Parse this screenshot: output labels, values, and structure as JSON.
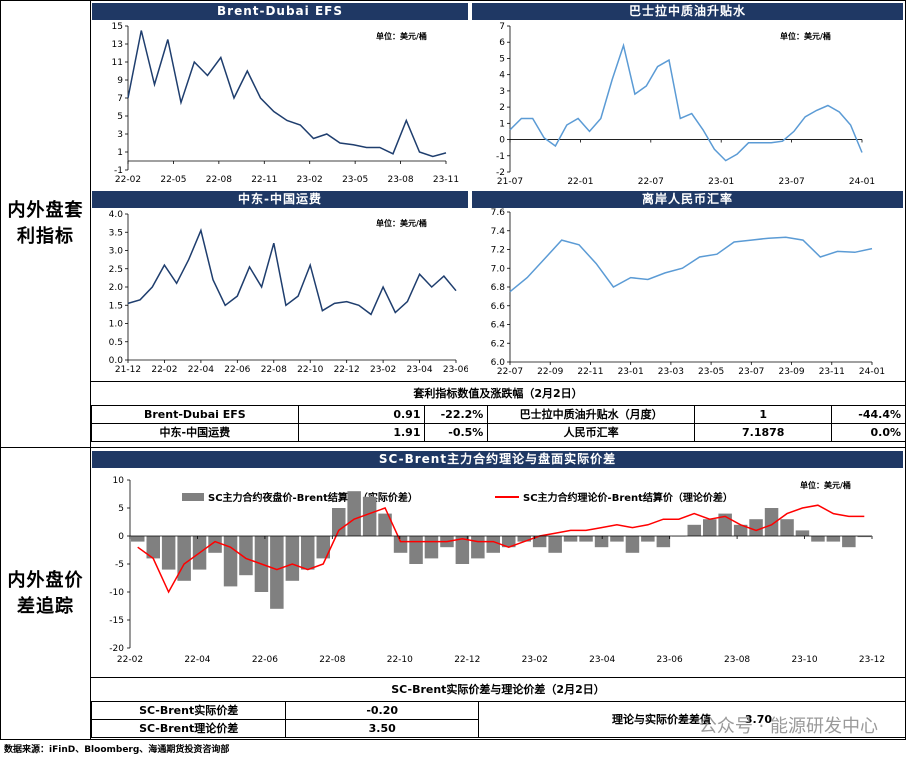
{
  "sections": {
    "top_label": "内外盘套\n利指标",
    "bottom_label": "内外盘价\n差追踪"
  },
  "charts": {
    "efs": {
      "title": "Brent-Dubai EFS",
      "unit": "单位：美元/桶",
      "color": "#1f3e6e"
    },
    "basrah": {
      "title": "巴士拉中质油升贴水",
      "unit": "单位：美元/桶",
      "color": "#5b9bd5"
    },
    "freight": {
      "title": "中东-中国运费",
      "unit": "单位：美元/桶",
      "color": "#1f3e6e"
    },
    "cny": {
      "title": "离岸人民币汇率",
      "color": "#5b9bd5"
    },
    "sc": {
      "title": "SC-Brent主力合约理论与盘面实际价差",
      "unit": "单位：美元/桶",
      "legend_bar": "SC主力合约夜盘价-Brent结算价（实际价差）",
      "legend_line": "SC主力合约理论价-Brent结算价（理论价差）",
      "bar_color": "#808080",
      "line_color": "#ff0000"
    }
  },
  "table1": {
    "title": "套利指标数值及涨跌幅（2月2日）",
    "rows": [
      [
        "Brent-Dubai EFS",
        "0.91",
        "-22.2%",
        "巴士拉中质油升贴水（月度）",
        "1",
        "-44.4%"
      ],
      [
        "中东-中国运费",
        "1.91",
        "-0.5%",
        "人民币汇率",
        "7.1878",
        "0.0%"
      ]
    ]
  },
  "table2": {
    "title": "SC-Brent实际价差与理论价差（2月2日）",
    "actual_label": "SC-Brent实际价差",
    "actual_value": "-0.20",
    "theory_label": "SC-Brent理论价差",
    "theory_value": "3.50",
    "diff_label": "理论与实际价差差值",
    "diff_value": "3.70"
  },
  "watermark": "公众号 · 能源研发中心",
  "source": "数据来源：iFinD、Bloomberg、海通期货投资咨询部",
  "chart_data": [
    {
      "type": "line",
      "title": "Brent-Dubai EFS",
      "unit": "单位：美元/桶",
      "xticks": [
        "22-02",
        "22-05",
        "22-08",
        "22-11",
        "23-02",
        "23-05",
        "23-08",
        "23-11"
      ],
      "yticks": [
        -1,
        1,
        3,
        5,
        7,
        9,
        11,
        13,
        15
      ],
      "ylim": [
        -1,
        15
      ],
      "x": [
        0,
        1,
        2,
        3,
        4,
        5,
        6,
        7,
        8,
        9,
        10,
        11,
        12,
        13,
        14,
        15,
        16,
        17,
        18,
        19,
        20,
        21,
        22,
        23,
        24
      ],
      "y": [
        7.0,
        14.5,
        8.5,
        13.5,
        6.5,
        11.0,
        9.5,
        11.5,
        7.0,
        10.0,
        7.0,
        5.5,
        4.5,
        4.0,
        2.5,
        3.0,
        2.0,
        1.8,
        1.5,
        1.5,
        0.8,
        4.5,
        1.0,
        0.5,
        0.9
      ]
    },
    {
      "type": "line",
      "title": "巴士拉中质油升贴水",
      "unit": "单位：美元/桶",
      "xticks": [
        "21-07",
        "22-01",
        "22-07",
        "23-01",
        "23-07",
        "24-01"
      ],
      "yticks": [
        -2.0,
        -1.0,
        0.0,
        1.0,
        2.0,
        3.0,
        4.0,
        5.0,
        6.0,
        7.0
      ],
      "ylim": [
        -2,
        7
      ],
      "x": [
        0,
        1,
        2,
        3,
        4,
        5,
        6,
        7,
        8,
        9,
        10,
        11,
        12,
        13,
        14,
        15,
        16,
        17,
        18,
        19,
        20,
        21,
        22,
        23,
        24,
        25,
        26,
        27,
        28,
        29,
        30,
        31
      ],
      "y": [
        0.6,
        1.3,
        1.3,
        0.1,
        -0.4,
        0.9,
        1.3,
        0.5,
        1.3,
        3.7,
        5.8,
        2.8,
        3.3,
        4.5,
        4.9,
        1.3,
        1.6,
        0.6,
        -0.6,
        -1.3,
        -0.9,
        -0.2,
        -0.2,
        -0.2,
        -0.1,
        0.5,
        1.4,
        1.8,
        2.1,
        1.7,
        0.9,
        -0.8
      ]
    },
    {
      "type": "line",
      "title": "中东-中国运费",
      "unit": "单位：美元/桶",
      "xticks": [
        "21-12",
        "22-02",
        "22-04",
        "22-06",
        "22-08",
        "22-10",
        "22-12",
        "23-02",
        "23-04",
        "23-06"
      ],
      "yticks": [
        0.0,
        0.5,
        1.0,
        1.5,
        2.0,
        2.5,
        3.0,
        3.5,
        4.0
      ],
      "ylim": [
        0,
        4
      ],
      "x": [
        0,
        1,
        2,
        3,
        4,
        5,
        6,
        7,
        8,
        9,
        10,
        11,
        12,
        13,
        14,
        15,
        16,
        17,
        18,
        19,
        20,
        21,
        22,
        23,
        24,
        25,
        26,
        27
      ],
      "y": [
        1.55,
        1.65,
        2.0,
        2.6,
        2.1,
        2.75,
        3.55,
        2.2,
        1.5,
        1.75,
        2.55,
        2.0,
        3.2,
        1.5,
        1.75,
        2.6,
        1.35,
        1.55,
        1.6,
        1.5,
        1.25,
        2.0,
        1.3,
        1.6,
        2.35,
        2.0,
        2.3,
        1.9
      ]
    },
    {
      "type": "line",
      "title": "离岸人民币汇率",
      "xticks": [
        "22-07",
        "22-09",
        "22-11",
        "23-01",
        "23-03",
        "23-05",
        "23-07",
        "23-09",
        "23-11",
        "24-01"
      ],
      "yticks": [
        6.0,
        6.2,
        6.4,
        6.6,
        6.8,
        7.0,
        7.2,
        7.4,
        7.6
      ],
      "ylim": [
        6,
        7.6
      ],
      "x": [
        0,
        1,
        2,
        3,
        4,
        5,
        6,
        7,
        8,
        9,
        10,
        11,
        12,
        13,
        14,
        15,
        16,
        17,
        18,
        19,
        20,
        21
      ],
      "y": [
        6.75,
        6.9,
        7.1,
        7.3,
        7.25,
        7.05,
        6.8,
        6.9,
        6.88,
        6.95,
        7.0,
        7.12,
        7.15,
        7.28,
        7.3,
        7.32,
        7.33,
        7.3,
        7.12,
        7.18,
        7.17,
        7.21
      ]
    },
    {
      "type": "bar+line",
      "title": "SC-Brent主力合约理论与盘面实际价差",
      "unit": "单位：美元/桶",
      "xticks": [
        "22-02",
        "22-04",
        "22-06",
        "22-08",
        "22-10",
        "22-12",
        "23-02",
        "23-04",
        "23-06",
        "23-08",
        "23-10",
        "23-12"
      ],
      "yticks": [
        -20,
        -15,
        -10,
        -5,
        0,
        5,
        10
      ],
      "ylim": [
        -20,
        10
      ],
      "series": [
        {
          "name": "SC主力合约夜盘价-Brent结算价（实际价差）",
          "type": "bar",
          "x": [
            0,
            1,
            2,
            3,
            4,
            5,
            6,
            7,
            8,
            9,
            10,
            11,
            12,
            13,
            14,
            15,
            16,
            17,
            18,
            19,
            20,
            21,
            22,
            23,
            24,
            25,
            26,
            27,
            28,
            29,
            30,
            31,
            32,
            33,
            34,
            35,
            36,
            37,
            38,
            39,
            40,
            41,
            42,
            43,
            44,
            45,
            46,
            47
          ],
          "values": [
            -1,
            -4,
            -6,
            -8,
            -6,
            -3,
            -9,
            -7,
            -10,
            -13,
            -8,
            -6,
            -4,
            5,
            8,
            7,
            4,
            -3,
            -5,
            -4,
            -2,
            -5,
            -4,
            -3,
            -2,
            -1,
            -2,
            -3,
            -1,
            -1,
            -2,
            -1,
            -3,
            -1,
            -2,
            0,
            2,
            3,
            4,
            2,
            3,
            5,
            3,
            1,
            -1,
            -1,
            -2,
            -0.2
          ]
        },
        {
          "name": "SC主力合约理论价-Brent结算价（理论价差）",
          "type": "line",
          "x": [
            0,
            1,
            2,
            3,
            4,
            5,
            6,
            7,
            8,
            9,
            10,
            11,
            12,
            13,
            14,
            15,
            16,
            17,
            18,
            19,
            20,
            21,
            22,
            23,
            24,
            25,
            26,
            27,
            28,
            29,
            30,
            31,
            32,
            33,
            34,
            35,
            36,
            37,
            38,
            39,
            40,
            41,
            42,
            43,
            44,
            45,
            46,
            47
          ],
          "values": [
            -2,
            -4,
            -10,
            -5,
            -3,
            -1,
            -2,
            -4,
            -5,
            -6,
            -5,
            -6,
            -5,
            1,
            3,
            4,
            5,
            -1,
            -1,
            -1,
            -1,
            -0.5,
            -1,
            -1,
            -2,
            -1,
            0,
            0.5,
            1,
            1,
            1.5,
            2,
            1.5,
            2,
            3,
            3,
            4,
            3,
            3.5,
            2,
            1,
            2,
            4,
            5,
            5.5,
            4,
            3.5,
            3.5
          ]
        }
      ]
    }
  ]
}
